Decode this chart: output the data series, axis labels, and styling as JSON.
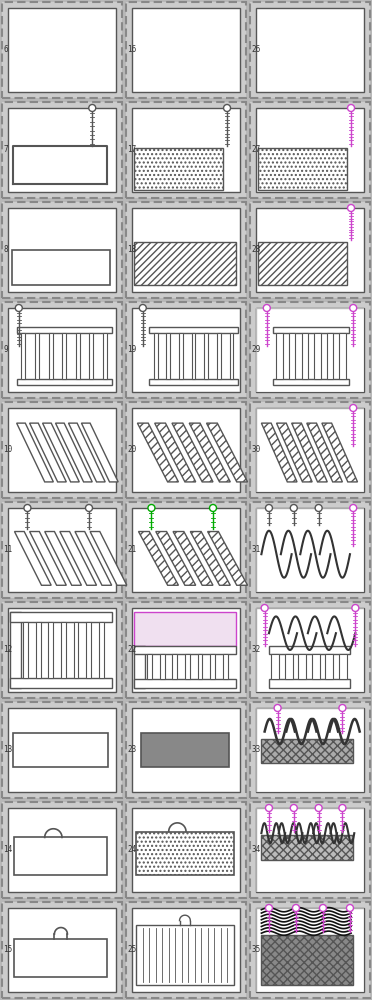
{
  "labels_col0": [
    "6",
    "7",
    "8",
    "9",
    "10",
    "11",
    "12",
    "13",
    "14",
    "15"
  ],
  "labels_col1": [
    "16",
    "17",
    "18",
    "19",
    "20",
    "21",
    "22",
    "23",
    "24",
    "25"
  ],
  "labels_col2": [
    "26",
    "27",
    "28",
    "29",
    "30",
    "31",
    "32",
    "33",
    "34",
    "35"
  ],
  "outer_bg": "#c8c8c8",
  "inner_bg": "#ffffff",
  "border_dark": "#444444",
  "border_med": "#777777",
  "green": "#00aa00",
  "pink": "#cc44cc",
  "gray_fill": "#888888",
  "dot_hatch": "....",
  "diag_hatch": "////",
  "vert_hatch": "|||"
}
